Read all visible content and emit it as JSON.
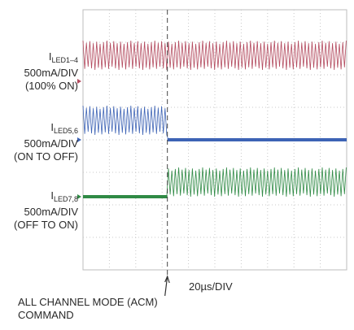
{
  "chart_data": {
    "type": "line",
    "title": "",
    "xlabel": "20µs/DIV",
    "x_divisions": 10,
    "y_divisions": 8,
    "grid": true,
    "event": {
      "label_lines": [
        "ALL CHANNEL MODE (ACM)",
        "COMMAND"
      ],
      "x_div": 3.2
    },
    "series": [
      {
        "name_main": "I",
        "name_sub": "LED1–4",
        "scale": "500mA/DIV",
        "state": "(100% ON)",
        "color": "#b34a5e",
        "before": "oscillating",
        "after": "oscillating",
        "baseline_div": 1.4,
        "amplitude_div": 0.45
      },
      {
        "name_main": "I",
        "name_sub": "LED5,6",
        "scale": "500mA/DIV",
        "state": "(ON TO OFF)",
        "color": "#3d63b5",
        "before": "oscillating",
        "after": "off",
        "baseline_div": 3.4,
        "amplitude_div": 0.45
      },
      {
        "name_main": "I",
        "name_sub": "LED7,8",
        "scale": "500mA/DIV",
        "state": "(OFF TO ON)",
        "color": "#2f8a45",
        "before": "off",
        "after": "oscillating",
        "baseline_div": 5.3,
        "amplitude_div": 0.45
      }
    ]
  }
}
